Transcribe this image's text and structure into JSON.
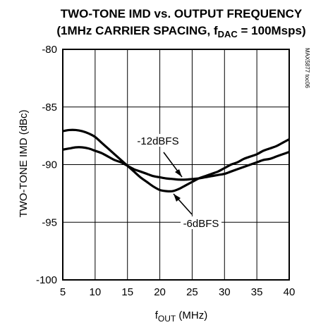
{
  "chart_data": {
    "type": "line",
    "title_line1": "TWO-TONE IMD vs. OUTPUT FREQUENCY",
    "title_line2_pre": "(1MHz CARRIER SPACING, f",
    "title_line2_sub": "DAC",
    "title_line2_post": " = 100Msps)",
    "ylabel": "TWO-TONE IMD (dBc)",
    "xlabel_main": "f",
    "xlabel_sub": "OUT",
    "xlabel_post": " (MHz)",
    "side_label": "MAX5877 toc06",
    "xlim": [
      5,
      40
    ],
    "ylim": [
      -100,
      -80
    ],
    "x_ticks": [
      "5",
      "10",
      "15",
      "20",
      "25",
      "30",
      "35",
      "40"
    ],
    "y_ticks": [
      "-80",
      "-85",
      "-90",
      "-95",
      "-100"
    ],
    "grid": true,
    "series": [
      {
        "name": "-12dBFS",
        "x": [
          5,
          6,
          7,
          8,
          9,
          10,
          11,
          12,
          13,
          14,
          15,
          16,
          17,
          18,
          19,
          20,
          21,
          22,
          23,
          24,
          25,
          26,
          27,
          28,
          29,
          30,
          31,
          32,
          33,
          34,
          35,
          36,
          37,
          38,
          39,
          40
        ],
        "y": [
          -88.7,
          -88.6,
          -88.5,
          -88.5,
          -88.6,
          -88.8,
          -89.0,
          -89.3,
          -89.6,
          -89.8,
          -90.1,
          -90.4,
          -90.6,
          -90.8,
          -91.0,
          -91.1,
          -91.2,
          -91.25,
          -91.3,
          -91.3,
          -91.25,
          -91.2,
          -91.1,
          -91.0,
          -90.9,
          -90.8,
          -90.6,
          -90.4,
          -90.2,
          -90.0,
          -89.8,
          -89.6,
          -89.5,
          -89.3,
          -89.1,
          -88.9
        ]
      },
      {
        "name": "-6dBFS",
        "x": [
          5,
          6,
          7,
          8,
          9,
          10,
          11,
          12,
          13,
          14,
          15,
          16,
          17,
          18,
          19,
          20,
          21,
          22,
          23,
          24,
          25,
          26,
          27,
          28,
          29,
          30,
          31,
          32,
          33,
          34,
          35,
          36,
          37,
          38,
          39,
          40
        ],
        "y": [
          -87.1,
          -87.0,
          -87.0,
          -87.1,
          -87.3,
          -87.6,
          -88.1,
          -88.6,
          -89.1,
          -89.6,
          -90.1,
          -90.6,
          -91.1,
          -91.5,
          -91.9,
          -92.2,
          -92.3,
          -92.3,
          -92.1,
          -91.8,
          -91.5,
          -91.2,
          -91.0,
          -90.8,
          -90.6,
          -90.3,
          -90.0,
          -89.8,
          -89.5,
          -89.3,
          -89.1,
          -88.8,
          -88.6,
          -88.4,
          -88.1,
          -87.8
        ]
      }
    ],
    "annotations": [
      "-12dBFS",
      "-6dBFS"
    ]
  }
}
